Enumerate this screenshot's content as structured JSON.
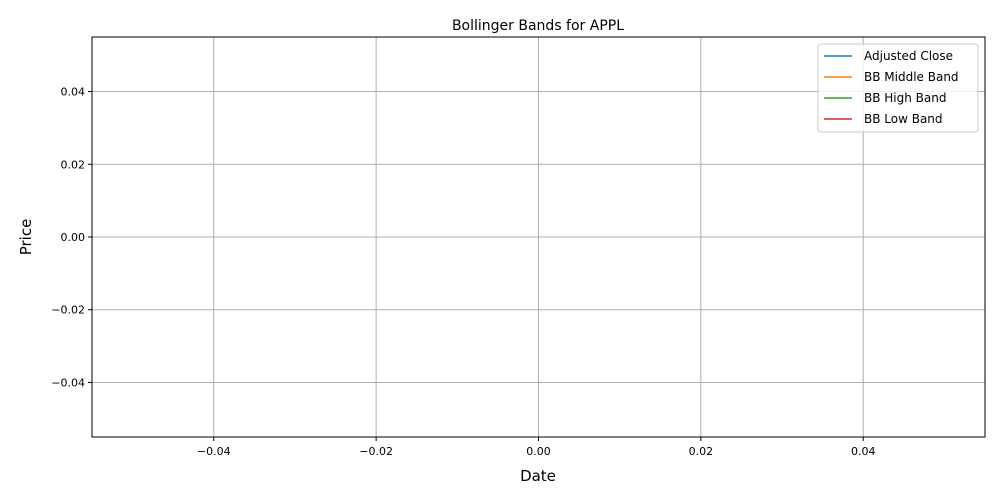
{
  "chart_data": {
    "type": "line",
    "title": "Bollinger Bands for APPL",
    "xlabel": "Date",
    "ylabel": "Price",
    "xlim": [
      -0.055,
      0.055
    ],
    "ylim": [
      -0.055,
      0.055
    ],
    "x_ticks": [
      -0.04,
      -0.02,
      0.0,
      0.02,
      0.04
    ],
    "x_tick_labels": [
      "−0.04",
      "−0.02",
      "0.00",
      "0.02",
      "0.04"
    ],
    "y_ticks": [
      -0.04,
      -0.02,
      0.0,
      0.02,
      0.04
    ],
    "y_tick_labels": [
      "−0.04",
      "−0.02",
      "0.00",
      "0.02",
      "0.04"
    ],
    "grid": true,
    "legend_position": "top-right",
    "series": [
      {
        "name": "Adjusted Close",
        "color": "#1f77b4",
        "x": [],
        "y": []
      },
      {
        "name": "BB Middle Band",
        "color": "#ff7f0e",
        "x": [],
        "y": []
      },
      {
        "name": "BB High Band",
        "color": "#2ca02c",
        "x": [],
        "y": []
      },
      {
        "name": "BB Low Band",
        "color": "#d62728",
        "x": [],
        "y": []
      }
    ]
  }
}
